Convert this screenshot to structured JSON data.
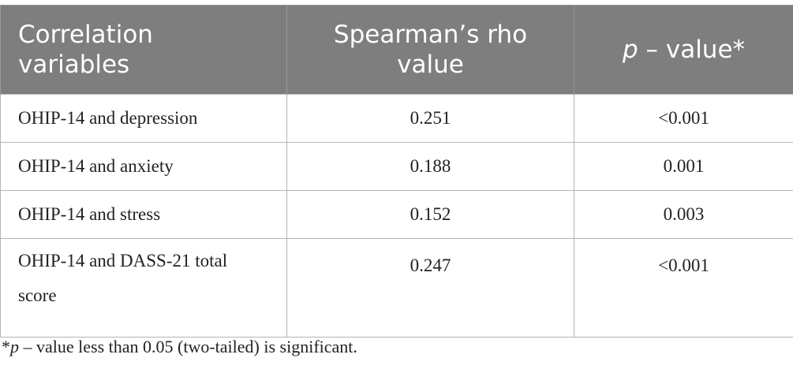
{
  "table": {
    "headers": [
      "Correlation variables",
      "Spearman’s rho value",
      {
        "prefix": "",
        "italic": "p",
        "suffix": " – value*"
      }
    ],
    "rows": [
      [
        "OHIP-14 and depression",
        "0.251",
        "<0.001"
      ],
      [
        "OHIP-14 and anxiety",
        "0.188",
        "0.001"
      ],
      [
        "OHIP-14 and stress",
        "0.152",
        "0.003"
      ],
      [
        "OHIP-14 and DASS-21 total score",
        "0.247",
        "<0.001"
      ]
    ]
  },
  "footnote": {
    "prefix": "*",
    "italic": "p",
    "suffix": " – value less than 0.05 (two-tailed) is significant."
  }
}
